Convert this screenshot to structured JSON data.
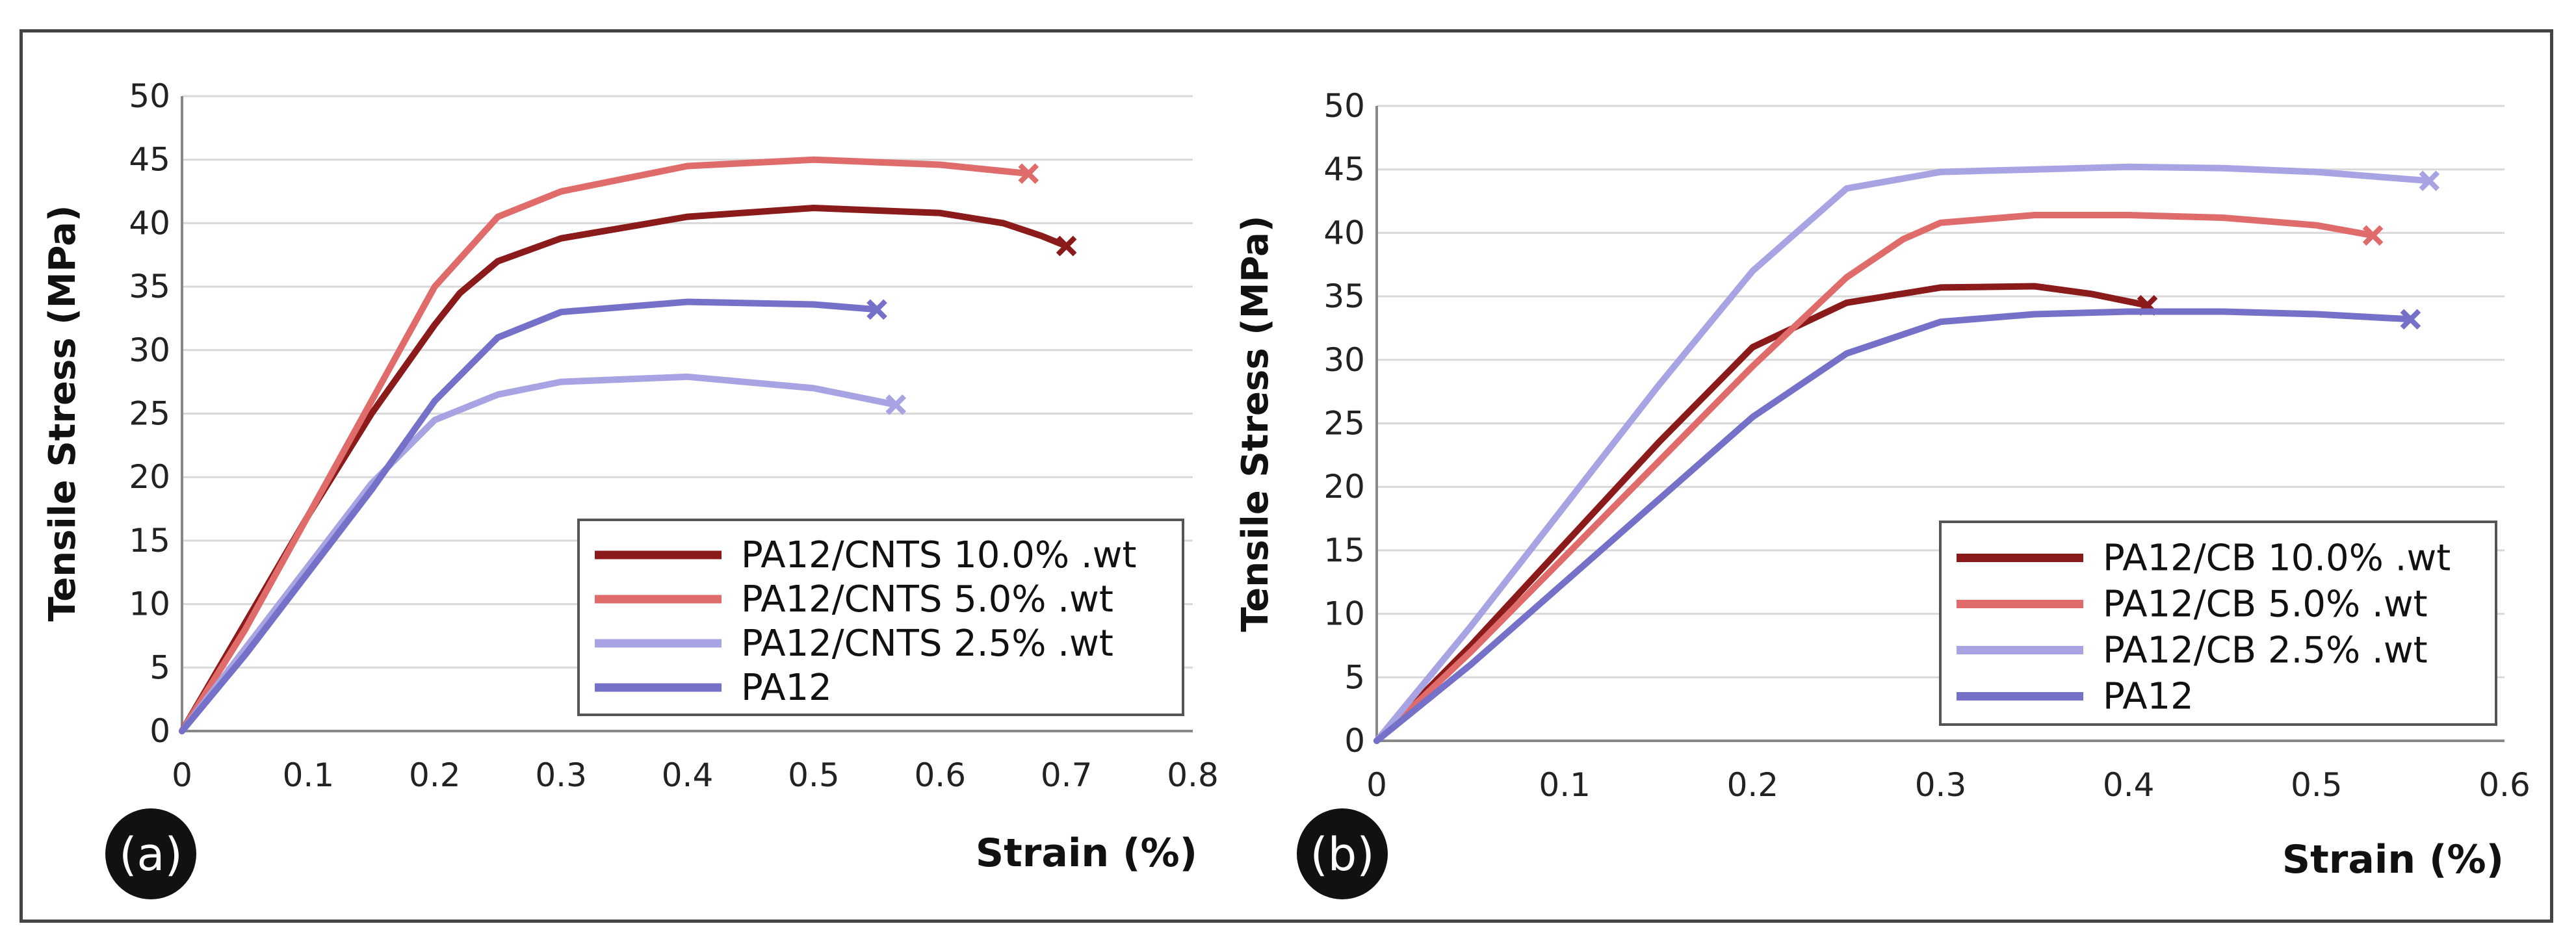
{
  "chart_data": [
    {
      "type": "line",
      "panel_label": "(a)",
      "xlabel": "Strain (%)",
      "ylabel": "Tensile Stress (MPa)",
      "xlim": [
        0,
        0.8
      ],
      "ylim": [
        0,
        50
      ],
      "xticks": [
        0,
        0.1,
        0.2,
        0.3,
        0.4,
        0.5,
        0.6,
        0.7,
        0.8
      ],
      "xtick_labels": [
        "0",
        "0.1",
        "0.2",
        "0.3",
        "0.4",
        "0.5",
        "0.6",
        "0.7",
        "0.8"
      ],
      "yticks": [
        0,
        5,
        10,
        15,
        20,
        25,
        30,
        35,
        40,
        45,
        50
      ],
      "ytick_labels": [
        "0",
        "5",
        "10",
        "15",
        "20",
        "25",
        "30",
        "35",
        "40",
        "45",
        "50"
      ],
      "grid": true,
      "legend_position": "bottom-right",
      "series": [
        {
          "name": "PA12/CNTS 10.0% .wt",
          "color": "#8b1a1a",
          "x": [
            0,
            0.05,
            0.1,
            0.15,
            0.2,
            0.22,
            0.25,
            0.3,
            0.4,
            0.5,
            0.6,
            0.65,
            0.68,
            0.7
          ],
          "y": [
            0,
            8.5,
            17,
            25,
            32,
            34.5,
            37,
            38.8,
            40.5,
            41.2,
            40.8,
            40,
            39,
            38.2
          ],
          "break": [
            0.7,
            38.2
          ]
        },
        {
          "name": "PA12/CNTS 5.0% .wt",
          "color": "#e06b6b",
          "x": [
            0,
            0.05,
            0.1,
            0.15,
            0.2,
            0.25,
            0.3,
            0.4,
            0.5,
            0.6,
            0.67
          ],
          "y": [
            0,
            8,
            17,
            26,
            35,
            40.5,
            42.5,
            44.5,
            45,
            44.6,
            43.9
          ],
          "break": [
            0.67,
            43.9
          ]
        },
        {
          "name": "PA12/CNTS 2.5% .wt",
          "color": "#a8a4e4",
          "x": [
            0,
            0.05,
            0.1,
            0.15,
            0.2,
            0.25,
            0.3,
            0.4,
            0.5,
            0.565
          ],
          "y": [
            0,
            6.5,
            13,
            19.5,
            24.5,
            26.5,
            27.5,
            27.9,
            27,
            25.7
          ],
          "break": [
            0.565,
            25.7
          ]
        },
        {
          "name": "PA12",
          "color": "#7570c8",
          "x": [
            0,
            0.05,
            0.1,
            0.15,
            0.2,
            0.25,
            0.3,
            0.4,
            0.5,
            0.55
          ],
          "y": [
            0,
            6,
            12.5,
            19,
            26,
            31,
            33,
            33.8,
            33.6,
            33.2
          ],
          "break": [
            0.55,
            33.2
          ]
        }
      ]
    },
    {
      "type": "line",
      "panel_label": "(b)",
      "xlabel": "Strain (%)",
      "ylabel": "Tensile Stress (MPa)",
      "xlim": [
        0,
        0.6
      ],
      "ylim": [
        0,
        50
      ],
      "xticks": [
        0,
        0.1,
        0.2,
        0.3,
        0.4,
        0.5,
        0.6
      ],
      "xtick_labels": [
        "0",
        "0.1",
        "0.2",
        "0.3",
        "0.4",
        "0.5",
        "0.6"
      ],
      "yticks": [
        0,
        5,
        10,
        15,
        20,
        25,
        30,
        35,
        40,
        45,
        50
      ],
      "ytick_labels": [
        "0",
        "5",
        "10",
        "15",
        "20",
        "25",
        "30",
        "35",
        "40",
        "45",
        "50"
      ],
      "grid": true,
      "legend_position": "bottom-right",
      "series": [
        {
          "name": "PA12/CB 10.0% .wt",
          "color": "#8b1a1a",
          "x": [
            0,
            0.05,
            0.1,
            0.15,
            0.2,
            0.25,
            0.3,
            0.35,
            0.38,
            0.41
          ],
          "y": [
            0,
            7.5,
            15.5,
            23.5,
            31,
            34.5,
            35.7,
            35.8,
            35.2,
            34.3
          ],
          "break": [
            0.41,
            34.3
          ]
        },
        {
          "name": "PA12/CB 5.0% .wt",
          "color": "#e06b6b",
          "x": [
            0,
            0.05,
            0.1,
            0.15,
            0.2,
            0.25,
            0.28,
            0.3,
            0.35,
            0.4,
            0.45,
            0.5,
            0.53
          ],
          "y": [
            0,
            7,
            14.5,
            22,
            29.5,
            36.5,
            39.5,
            40.8,
            41.4,
            41.4,
            41.2,
            40.6,
            39.8
          ],
          "break": [
            0.53,
            39.8
          ]
        },
        {
          "name": "PA12/CB 2.5% .wt",
          "color": "#a8a4e4",
          "x": [
            0,
            0.05,
            0.1,
            0.15,
            0.2,
            0.25,
            0.3,
            0.35,
            0.4,
            0.45,
            0.5,
            0.56
          ],
          "y": [
            0,
            9,
            18.5,
            28,
            37,
            43.5,
            44.8,
            45,
            45.2,
            45.1,
            44.8,
            44.1
          ],
          "break": [
            0.56,
            44.1
          ]
        },
        {
          "name": "PA12",
          "color": "#7570c8",
          "x": [
            0,
            0.05,
            0.1,
            0.15,
            0.2,
            0.25,
            0.3,
            0.35,
            0.4,
            0.45,
            0.5,
            0.55
          ],
          "y": [
            0,
            6,
            12.5,
            19,
            25.5,
            30.5,
            33,
            33.6,
            33.8,
            33.8,
            33.6,
            33.2
          ],
          "break": [
            0.55,
            33.2
          ]
        }
      ]
    }
  ]
}
